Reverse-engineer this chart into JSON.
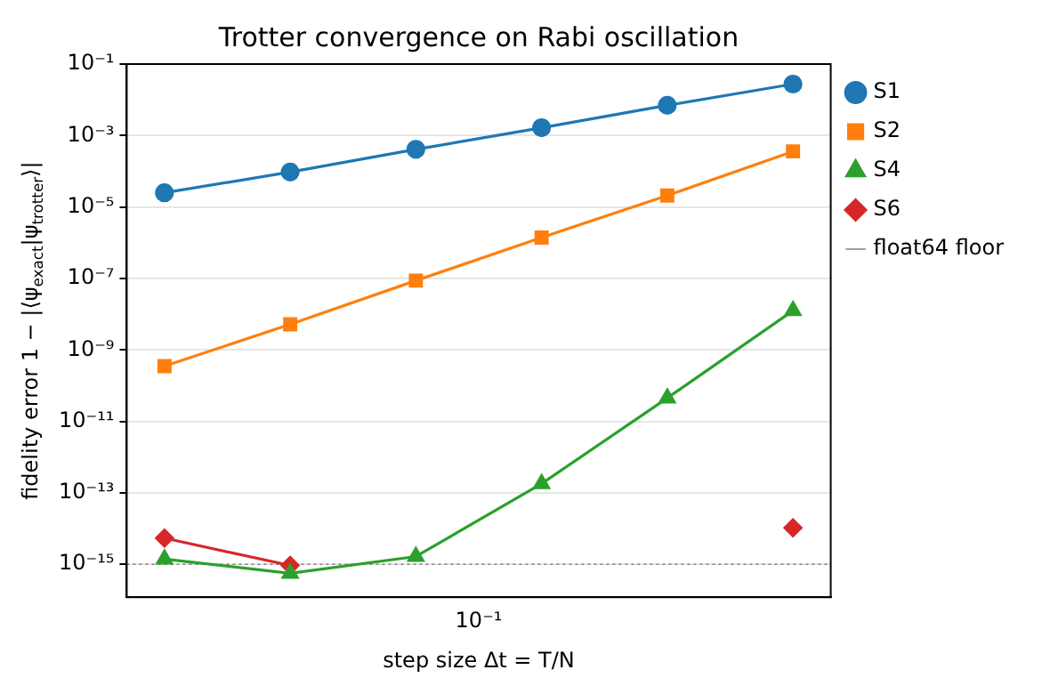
{
  "chart_data": {
    "type": "line",
    "title": "Trotter convergence on Rabi oscillation",
    "xlabel": "step size Δt = T/N",
    "ylabel": "fidelity error 1 − |⟨ψ$_{exact}$|ψ$_{trotter}$⟩|",
    "categories": [
      null,
      null,
      null,
      null,
      null,
      null
    ],
    "annotations": [
      "10⁻¹"
    ],
    "series": [
      {
        "name": "S1",
        "color": "#1f77b4",
        "marker": "circle",
        "values": [
          2.5e-05,
          9.5e-05,
          0.00041,
          0.00165,
          0.007,
          0.0275
        ]
      },
      {
        "name": "S2",
        "color": "#ff7f0e",
        "marker": "square",
        "values": [
          3.5e-10,
          5.2e-09,
          8.7e-08,
          1.4e-06,
          2.1e-05,
          0.00036
        ]
      },
      {
        "name": "S4",
        "color": "#2ca02c",
        "marker": "triangle",
        "values": [
          1.4e-15,
          5.6e-16,
          1.65e-15,
          1.8e-13,
          4.5e-11,
          1.26e-08
        ]
      },
      {
        "name": "S6",
        "color": "#d62728",
        "marker": "diamond",
        "values": [
          5.4e-15,
          9.3e-16,
          null,
          null,
          null,
          1.05e-14
        ]
      }
    ],
    "ref_lines": [
      {
        "axis": "y",
        "value": 1e-15,
        "label": "float64 floor",
        "color": "#808080",
        "line_style": "dotted"
      }
    ],
    "log": "y",
    "ylim": [
      1.2e-16,
      0.1
    ],
    "yticks": [
      {
        "value": 1e-15,
        "label": "10⁻¹⁵"
      },
      {
        "value": 1e-13,
        "label": "10⁻¹³"
      },
      {
        "value": 1e-11,
        "label": "10⁻¹¹"
      },
      {
        "value": 1e-09,
        "label": "10⁻⁹"
      },
      {
        "value": 1e-07,
        "label": "10⁻⁷"
      },
      {
        "value": 1e-05,
        "label": "10⁻⁵"
      },
      {
        "value": 0.001,
        "label": "10⁻³"
      },
      {
        "value": 0.1,
        "label": "10⁻¹"
      }
    ],
    "grid": "y",
    "legend": "right",
    "line_style": "solid"
  }
}
